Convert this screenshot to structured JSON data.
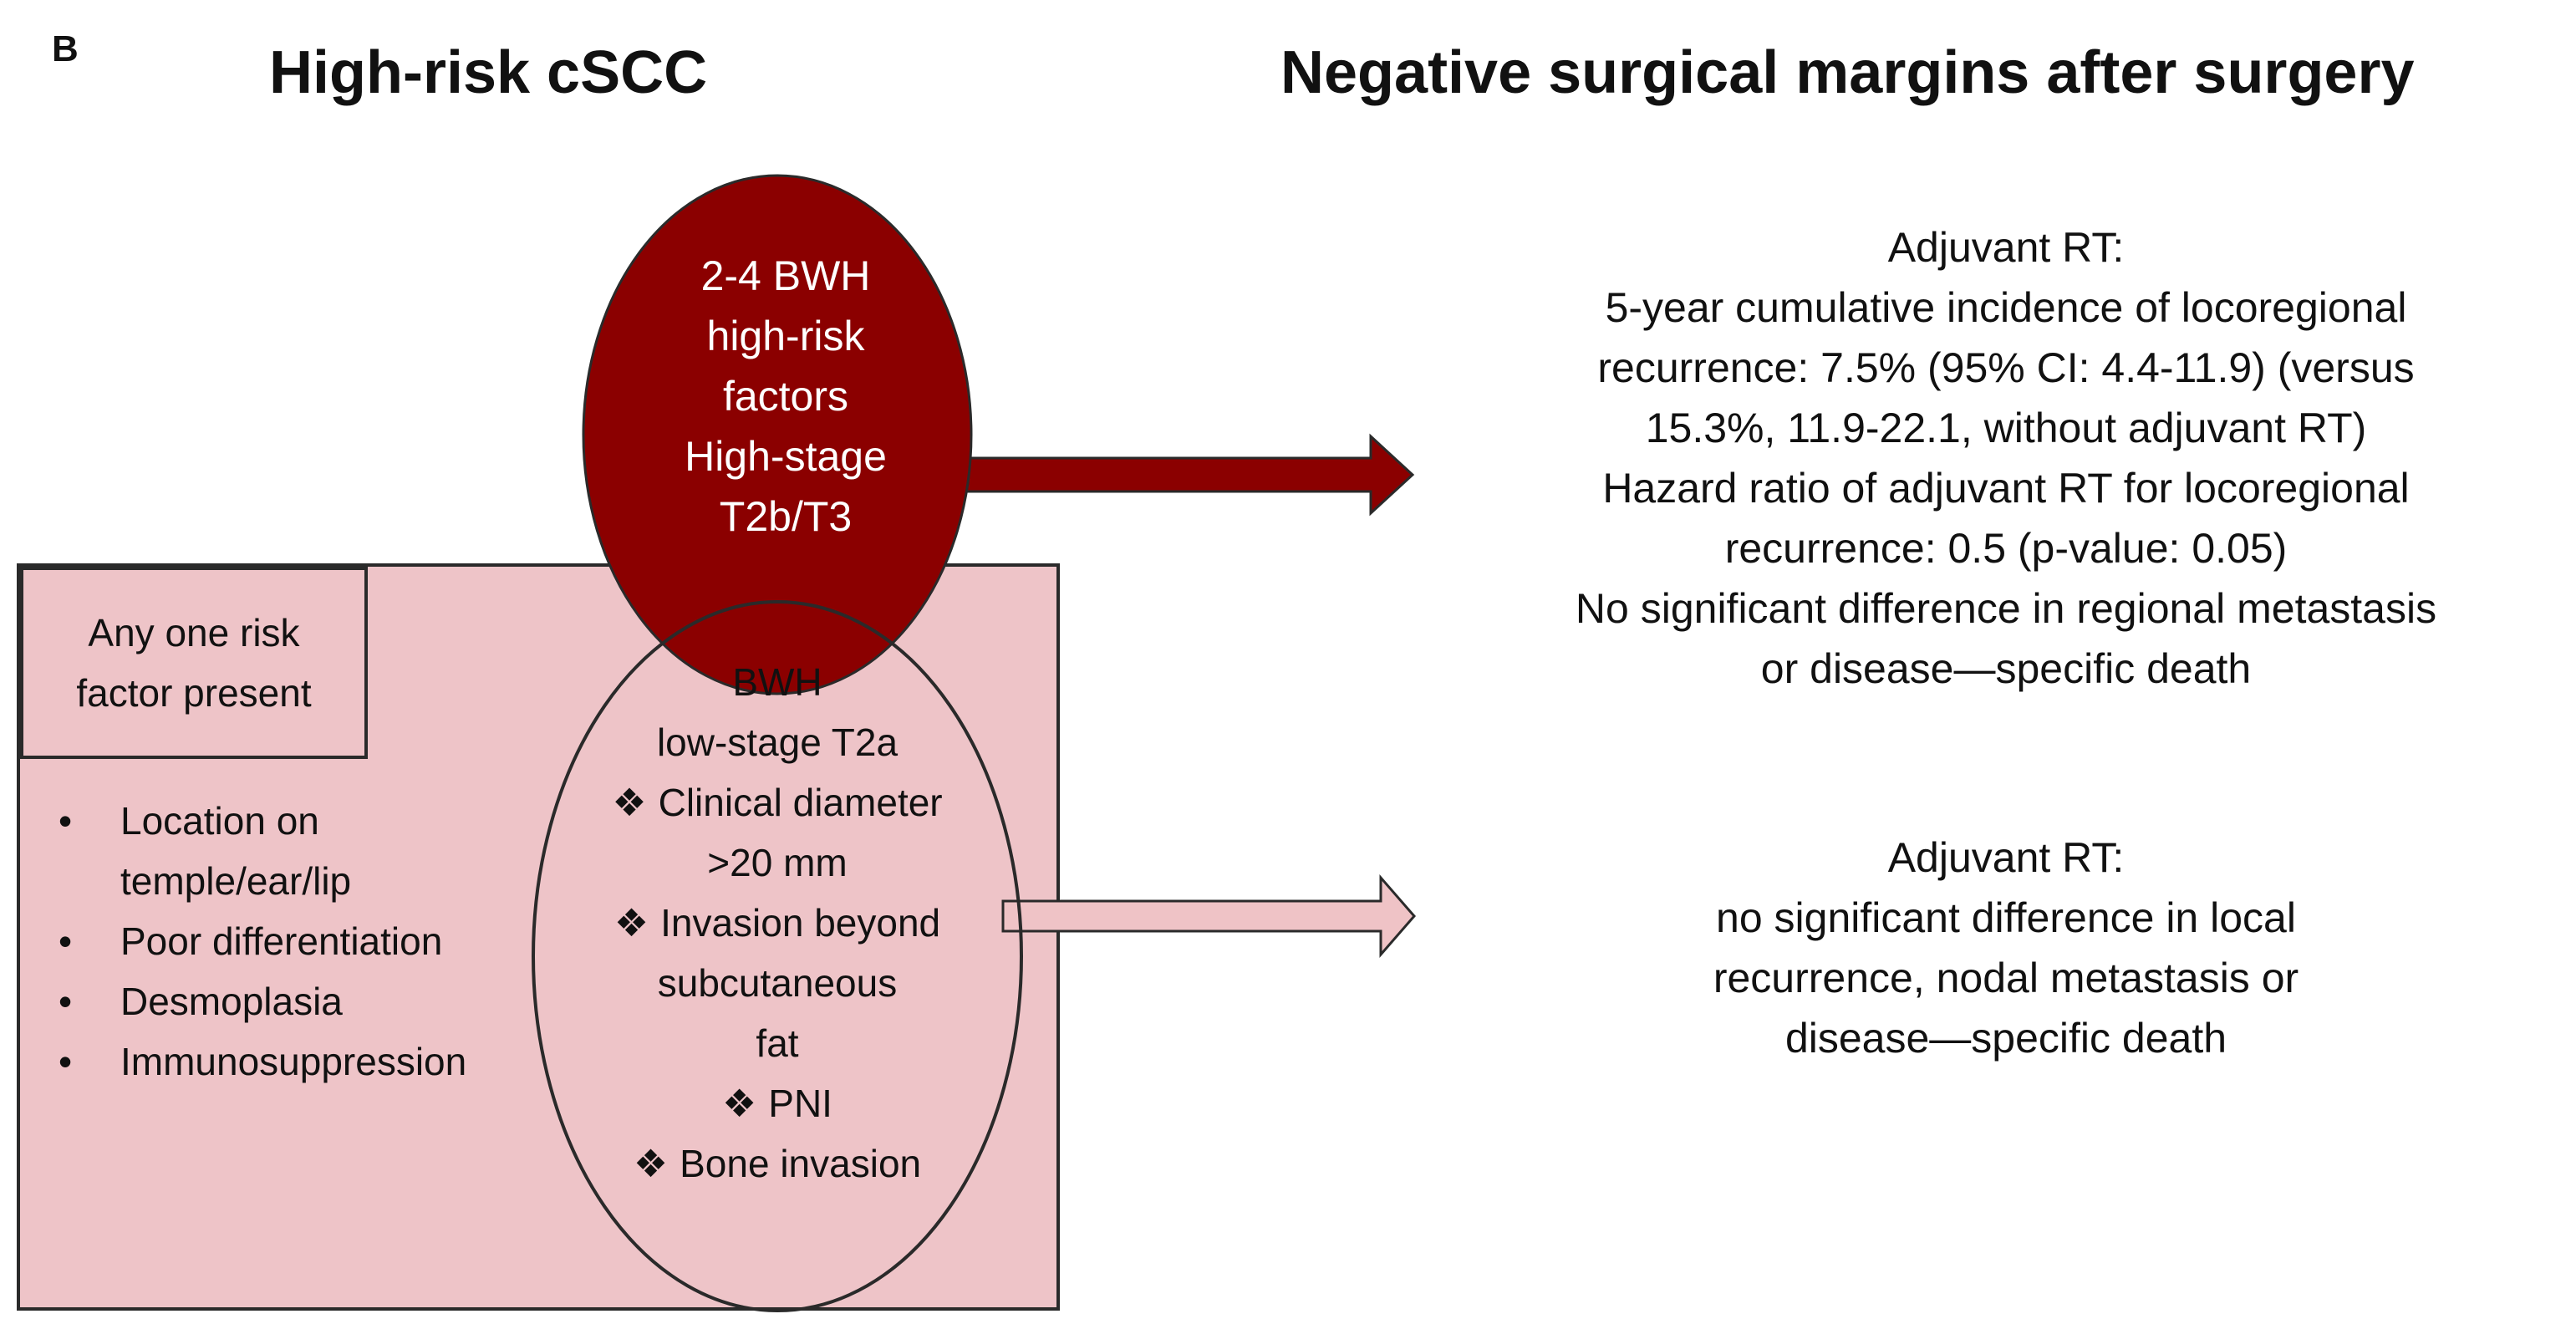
{
  "panel_label": "B",
  "titles": {
    "left": "High-risk cSCC",
    "right": "Negative surgical margins after surgery"
  },
  "colors": {
    "dark_red": "#8b0000",
    "pink_fill": "#eec4c8",
    "pink_arrow": "#efc3c6",
    "outline": "#2a2a2a"
  },
  "red_ellipse": {
    "lines": [
      "2-4 BWH",
      "high-risk",
      "factors",
      "High-stage",
      "T2b/T3"
    ]
  },
  "risk_box": {
    "header": [
      "Any one risk",
      "factor present"
    ],
    "bullet_glyph": "•",
    "bullets": [
      {
        "lines": [
          "Location on",
          "temple/ear/lip"
        ]
      },
      {
        "lines": [
          "Poor differentiation"
        ]
      },
      {
        "lines": [
          "Desmoplasia"
        ]
      },
      {
        "lines": [
          "Immunosuppression"
        ]
      }
    ]
  },
  "open_ellipse": {
    "diamond_glyph": "❖",
    "heading": [
      "BWH",
      "low-stage T2a"
    ],
    "items": [
      {
        "lines": [
          "Clinical diameter",
          ">20 mm"
        ]
      },
      {
        "lines": [
          "Invasion beyond",
          "subcutaneous",
          "fat"
        ]
      },
      {
        "lines": [
          "PNI"
        ]
      },
      {
        "lines": [
          "Bone invasion"
        ]
      }
    ]
  },
  "outcomes": {
    "high_stage": [
      "Adjuvant RT:",
      "5-year cumulative incidence of locoregional",
      "recurrence: 7.5% (95% CI: 4.4-11.9) (versus",
      "15.3%, 11.9-22.1, without adjuvant RT)",
      "Hazard ratio of adjuvant RT for locoregional",
      "recurrence: 0.5 (p-value: 0.05)",
      "No significant difference in regional metastasis",
      "or disease—specific death"
    ],
    "low_stage": [
      "Adjuvant RT:",
      "no significant difference in local",
      "recurrence, nodal metastasis or",
      "disease—specific death"
    ]
  }
}
